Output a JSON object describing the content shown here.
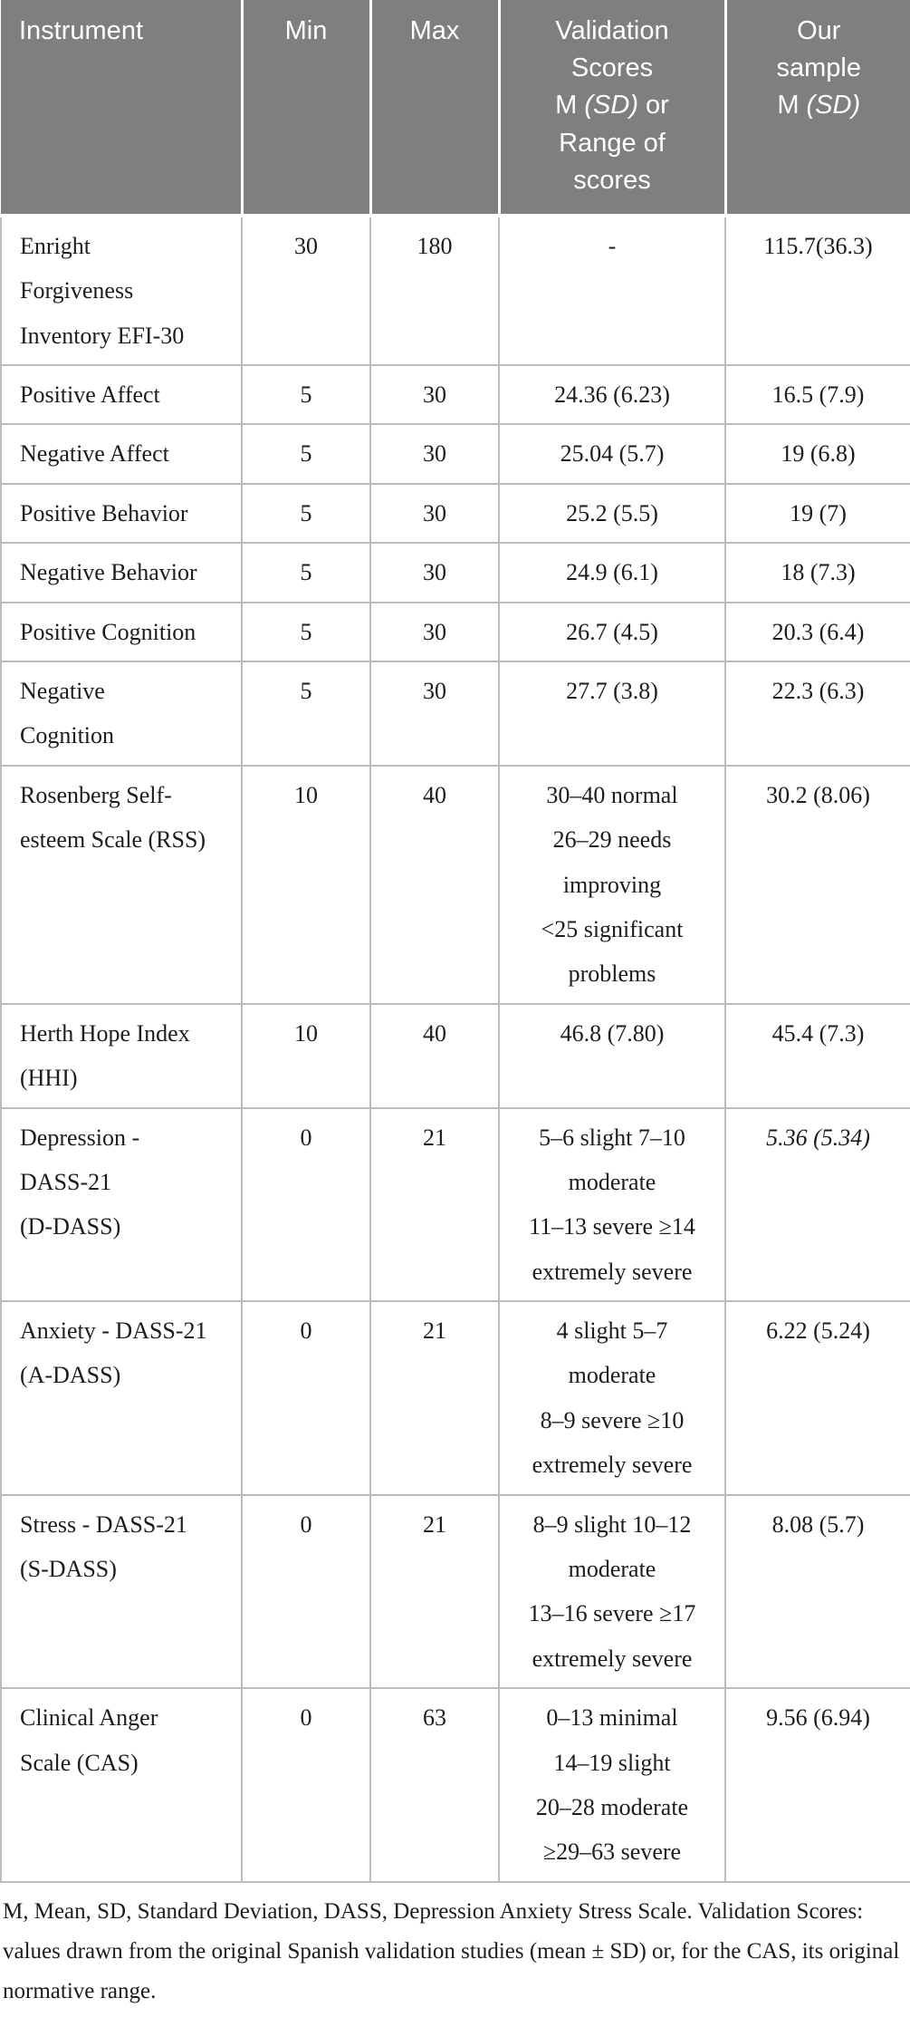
{
  "table": {
    "header": {
      "instrument": "Instrument",
      "min": "Min",
      "max": "Max",
      "validation": {
        "line1": "Validation",
        "line2": "Scores",
        "line3_pre": "M ",
        "line3_italic": "(SD)",
        "line3_post": " or",
        "line4": "Range of",
        "line5": "scores"
      },
      "our_sample": {
        "line1": "Our",
        "line2": "sample",
        "line3_pre": "M ",
        "line3_italic": "(SD)"
      }
    },
    "rows": [
      {
        "instrument": "Enright\nForgiveness\nInventory EFI-30",
        "min": "30",
        "max": "180",
        "validation": "-",
        "sample": "115.7(36.3)"
      },
      {
        "instrument": "Positive Affect",
        "min": "5",
        "max": "30",
        "validation": "24.36 (6.23)",
        "sample": "16.5 (7.9)"
      },
      {
        "instrument": "Negative Affect",
        "min": "5",
        "max": "30",
        "validation": "25.04 (5.7)",
        "sample": "19 (6.8)"
      },
      {
        "instrument": "Positive Behavior",
        "min": "5",
        "max": "30",
        "validation": "25.2 (5.5)",
        "sample": "19 (7)"
      },
      {
        "instrument": "Negative Behavior",
        "min": "5",
        "max": "30",
        "validation": "24.9 (6.1)",
        "sample": "18 (7.3)"
      },
      {
        "instrument": "Positive Cognition",
        "min": "5",
        "max": "30",
        "validation": "26.7 (4.5)",
        "sample": "20.3 (6.4)"
      },
      {
        "instrument": "Negative\nCognition",
        "min": "5",
        "max": "30",
        "validation": "27.7 (3.8)",
        "sample": "22.3 (6.3)"
      },
      {
        "instrument": "Rosenberg Self-\nesteem Scale (RSS)",
        "min": "10",
        "max": "40",
        "validation": "30–40 normal\n26–29 needs\nimproving\n<25 significant\nproblems",
        "sample": "30.2 (8.06)"
      },
      {
        "instrument": "Herth Hope Index\n(HHI)",
        "min": "10",
        "max": "40",
        "validation": "46.8 (7.80)",
        "sample": "45.4 (7.3)"
      },
      {
        "instrument": "Depression -\nDASS-21\n(D-DASS)",
        "min": "0",
        "max": "21",
        "validation": "5–6 slight 7–10\nmoderate\n11–13 severe ≥14\nextremely severe",
        "sample": "5.36 (5.34)",
        "sample_italic": true
      },
      {
        "instrument": "Anxiety - DASS-21\n(A-DASS)",
        "min": "0",
        "max": "21",
        "validation": "4 slight 5–7\nmoderate\n8–9 severe ≥10\nextremely severe",
        "sample": "6.22 (5.24)"
      },
      {
        "instrument": "Stress - DASS-21\n(S-DASS)",
        "min": "0",
        "max": "21",
        "validation": "8–9 slight 10–12\nmoderate\n13–16 severe ≥17\nextremely severe",
        "sample": "8.08 (5.7)"
      },
      {
        "instrument": "Clinical Anger\nScale (CAS)",
        "min": "0",
        "max": "63",
        "validation": "0–13 minimal\n14–19 slight\n20–28 moderate\n≥29–63 severe",
        "sample": "9.56 (6.94)"
      }
    ]
  },
  "footnote": "M, Mean, SD, Standard Deviation, DASS, Depression Anxiety Stress Scale. Validation Scores: values drawn from the original Spanish validation studies (mean ± SD) or, for the CAS, its original normative range."
}
